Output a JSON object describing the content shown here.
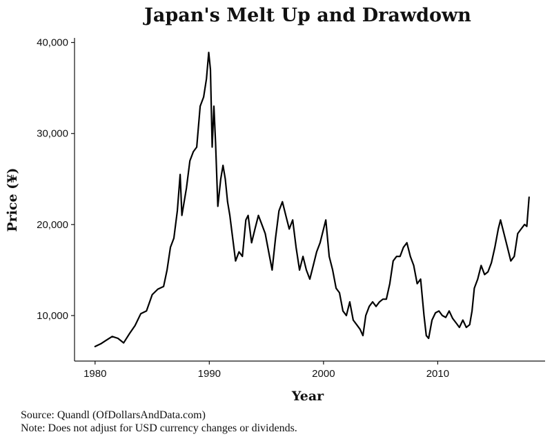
{
  "chart_data": {
    "type": "line",
    "title": "Japan's Melt Up and Drawdown",
    "xlabel": "Year",
    "ylabel": "Price (¥)",
    "xlim": [
      1978.2,
      2019.4
    ],
    "ylim": [
      5000,
      40500
    ],
    "x_ticks": [
      1980,
      1990,
      2000,
      2010
    ],
    "x_tick_labels": [
      "1980",
      "1990",
      "2000",
      "2010"
    ],
    "y_ticks": [
      10000,
      20000,
      30000,
      40000
    ],
    "y_tick_labels": [
      "10,000",
      "20,000",
      "30,000",
      "40,000"
    ],
    "grid": false,
    "series": [
      {
        "x": [
          1980.0,
          1980.5,
          1981.0,
          1981.5,
          1982.0,
          1982.5,
          1983.0,
          1983.5,
          1984.0,
          1984.5,
          1985.0,
          1985.5,
          1986.0,
          1986.3,
          1986.6,
          1986.9,
          1987.2,
          1987.45,
          1987.6,
          1987.8,
          1988.0,
          1988.3,
          1988.6,
          1988.9,
          1989.2,
          1989.5,
          1989.75,
          1989.95,
          1990.1,
          1990.25,
          1990.4,
          1990.55,
          1990.75,
          1991.0,
          1991.2,
          1991.4,
          1991.6,
          1991.8,
          1992.0,
          1992.3,
          1992.6,
          1992.9,
          1993.2,
          1993.4,
          1993.7,
          1994.0,
          1994.3,
          1994.6,
          1994.9,
          1995.2,
          1995.5,
          1995.8,
          1996.1,
          1996.4,
          1996.7,
          1997.0,
          1997.3,
          1997.6,
          1997.9,
          1998.2,
          1998.5,
          1998.8,
          1999.1,
          1999.4,
          1999.7,
          2000.0,
          2000.2,
          2000.5,
          2000.8,
          2001.1,
          2001.4,
          2001.7,
          2002.0,
          2002.3,
          2002.6,
          2002.9,
          2003.2,
          2003.45,
          2003.7,
          2004.0,
          2004.3,
          2004.6,
          2004.9,
          2005.2,
          2005.5,
          2005.8,
          2006.1,
          2006.4,
          2006.7,
          2007.0,
          2007.3,
          2007.6,
          2007.9,
          2008.2,
          2008.5,
          2008.8,
          2009.0,
          2009.2,
          2009.5,
          2009.8,
          2010.1,
          2010.4,
          2010.7,
          2011.0,
          2011.3,
          2011.6,
          2011.9,
          2012.2,
          2012.5,
          2012.8,
          2013.0,
          2013.2,
          2013.5,
          2013.8,
          2014.1,
          2014.4,
          2014.7,
          2015.0,
          2015.3,
          2015.5,
          2015.8,
          2016.1,
          2016.4,
          2016.7,
          2017.0,
          2017.3,
          2017.6,
          2017.8,
          2018.0
        ],
        "values": [
          6600,
          6900,
          7300,
          7700,
          7500,
          7000,
          8000,
          8900,
          10200,
          10500,
          12300,
          12900,
          13200,
          15000,
          17500,
          18500,
          21500,
          25500,
          21000,
          22500,
          24000,
          27000,
          28000,
          28500,
          33000,
          34000,
          36000,
          38900,
          37000,
          28500,
          33000,
          29000,
          22000,
          25000,
          26500,
          25000,
          22500,
          21000,
          19000,
          16000,
          17000,
          16500,
          20500,
          21000,
          18000,
          19500,
          21000,
          20000,
          19000,
          17000,
          15000,
          18500,
          21500,
          22500,
          21000,
          19500,
          20500,
          17500,
          15000,
          16500,
          15000,
          14000,
          15500,
          17000,
          18000,
          19500,
          20500,
          16500,
          15000,
          13000,
          12500,
          10500,
          10000,
          11500,
          9500,
          9000,
          8500,
          7800,
          10000,
          11000,
          11500,
          11000,
          11500,
          11800,
          11800,
          13500,
          16000,
          16500,
          16500,
          17500,
          18000,
          16500,
          15500,
          13500,
          14000,
          10000,
          7800,
          7500,
          9500,
          10300,
          10500,
          10000,
          9800,
          10500,
          9700,
          9200,
          8700,
          9500,
          8700,
          9000,
          10500,
          13000,
          14000,
          15500,
          14500,
          14800,
          15800,
          17500,
          19500,
          20500,
          19000,
          17500,
          16000,
          16500,
          19000,
          19500,
          20000,
          19800,
          23000
        ]
      }
    ],
    "source": "Source:  Quandl (OfDollarsAndData.com)",
    "note": "Note:  Does not adjust for USD currency changes or dividends."
  }
}
